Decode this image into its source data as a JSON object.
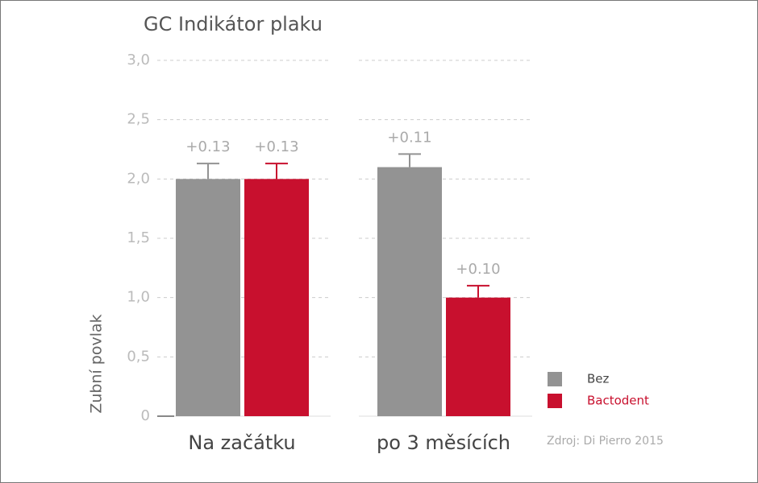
{
  "chart_data": {
    "type": "bar",
    "title": "GC Indikátor plaku",
    "y_label": "Zubní povlak",
    "source": "Zdroj: Di Pierro 2015",
    "categories": [
      "Na začátku",
      "po 3 měsících"
    ],
    "series": [
      {
        "name": "Bez",
        "color": "#939393",
        "values": [
          2.0,
          2.1
        ],
        "errors": [
          0.13,
          0.11
        ],
        "error_labels": [
          "+0.13",
          "+0.11"
        ]
      },
      {
        "name": "Bactodent",
        "color": "#c8102e",
        "values": [
          2.0,
          1.0
        ],
        "errors": [
          0.13,
          0.1
        ],
        "error_labels": [
          "+0.13",
          "+0.10"
        ]
      }
    ],
    "ylim": [
      0,
      3
    ],
    "yticks": [
      0,
      {
        "value": 0.5,
        "label": "0,5"
      },
      {
        "value": 1,
        "label": "1,0"
      },
      {
        "value": 1.5,
        "label": "1,5"
      },
      {
        "value": 2,
        "label": "2,0"
      },
      {
        "value": 2.5,
        "label": "2,5"
      },
      {
        "value": 3,
        "label": "3,0"
      }
    ],
    "grid": true,
    "legend": "lower right"
  }
}
